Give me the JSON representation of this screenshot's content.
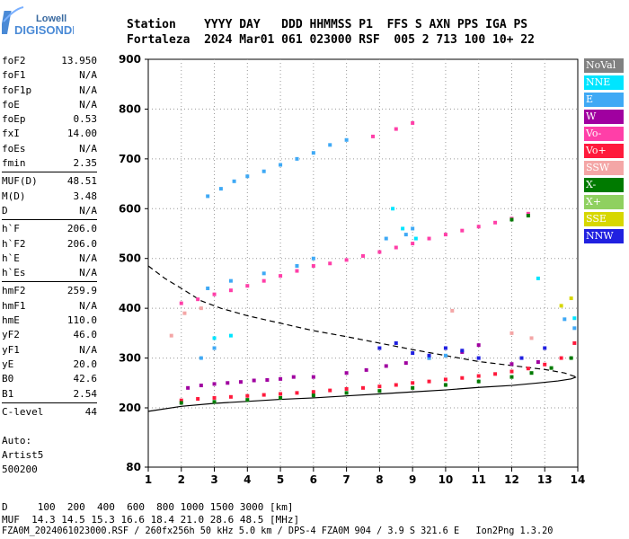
{
  "header": {
    "line1": "Station    YYYY DAY   DDD HHMMSS P1  FFS S AXN PPS IGA PS",
    "line2": "Fortaleza  2024 Mar01 061 023000 RSF  005 2 713 100 10+ 22"
  },
  "logo": {
    "line1": "Lowell",
    "line2": "DIGISONDE"
  },
  "params": [
    {
      "group": [
        {
          "label": "foF2",
          "value": "13.950"
        },
        {
          "label": "foF1",
          "value": "N/A"
        },
        {
          "label": "foF1p",
          "value": "N/A"
        },
        {
          "label": "foE",
          "value": "N/A"
        },
        {
          "label": "foEp",
          "value": "0.53"
        },
        {
          "label": "fxI",
          "value": "14.00"
        },
        {
          "label": "foEs",
          "value": "N/A"
        },
        {
          "label": "fmin",
          "value": "2.35"
        }
      ]
    },
    {
      "group": [
        {
          "label": "MUF(D)",
          "value": "48.51"
        },
        {
          "label": "M(D)",
          "value": "3.48"
        },
        {
          "label": "D",
          "value": "N/A"
        }
      ]
    },
    {
      "group": [
        {
          "label": "h`F",
          "value": "206.0"
        },
        {
          "label": "h`F2",
          "value": "206.0"
        },
        {
          "label": "h`E",
          "value": "N/A"
        },
        {
          "label": "h`Es",
          "value": "N/A"
        }
      ]
    },
    {
      "group": [
        {
          "label": "hmF2",
          "value": "259.9"
        },
        {
          "label": "hmF1",
          "value": "N/A"
        },
        {
          "label": "hmE",
          "value": "110.0"
        },
        {
          "label": "yF2",
          "value": "46.0"
        },
        {
          "label": "yF1",
          "value": "N/A"
        },
        {
          "label": "yE",
          "value": "20.0"
        },
        {
          "label": "B0",
          "value": "42.6"
        },
        {
          "label": "B1",
          "value": "2.54"
        }
      ]
    },
    {
      "group": [
        {
          "label": "C-level",
          "value": "44"
        }
      ]
    }
  ],
  "auto": {
    "line1": "Auto:",
    "line2": "Artist5",
    "line3": "500200"
  },
  "legend": [
    {
      "label": "NoVal",
      "color": "#808080"
    },
    {
      "label": "NNE",
      "color": "#00e5ff"
    },
    {
      "label": "E",
      "color": "#3fa9f5"
    },
    {
      "label": "W",
      "color": "#a000a0"
    },
    {
      "label": "Vo-",
      "color": "#ff3fa8"
    },
    {
      "label": "Vo+",
      "color": "#ff1a3c"
    },
    {
      "label": "SSW",
      "color": "#f4a6a6"
    },
    {
      "label": "X-",
      "color": "#007a00"
    },
    {
      "label": "X+",
      "color": "#8fd060"
    },
    {
      "label": "SSE",
      "color": "#d7d700"
    },
    {
      "label": "NNW",
      "color": "#2020e0"
    }
  ],
  "footer": {
    "line1": "D     100  200  400  600  800 1000 1500 3000 [km]",
    "line2": "MUF  14.3 14.5 15.3 16.6 18.4 21.0 28.6 48.5 [MHz]",
    "line3": "FZA0M_2024061023000.RSF / 260fx256h 50 kHz 5.0 km / DPS-4 FZA0M 904 / 3.9 S 321.6 E   Ion2Png 1.3.20"
  },
  "chart_data": {
    "type": "scatter",
    "title": "",
    "xlabel": "",
    "ylabel": "",
    "xlim": [
      1,
      14
    ],
    "ylim": [
      80,
      900
    ],
    "xticks": [
      1,
      2,
      3,
      4,
      5,
      6,
      7,
      8,
      9,
      10,
      11,
      12,
      13,
      14
    ],
    "yticks": [
      80,
      200,
      300,
      400,
      500,
      600,
      700,
      800,
      900
    ],
    "grid": "dotted",
    "series": [
      {
        "name": "Vo+",
        "color": "#ff1a3c",
        "points": [
          [
            2.0,
            215
          ],
          [
            2.5,
            218
          ],
          [
            3.0,
            220
          ],
          [
            3.5,
            222
          ],
          [
            4.0,
            224
          ],
          [
            4.5,
            226
          ],
          [
            5.0,
            228
          ],
          [
            5.5,
            230
          ],
          [
            6.0,
            232
          ],
          [
            6.5,
            235
          ],
          [
            7.0,
            238
          ],
          [
            7.5,
            240
          ],
          [
            8.0,
            243
          ],
          [
            8.5,
            246
          ],
          [
            9.0,
            250
          ],
          [
            9.5,
            253
          ],
          [
            10.0,
            257
          ],
          [
            10.5,
            260
          ],
          [
            11.0,
            264
          ],
          [
            11.5,
            268
          ],
          [
            12.0,
            273
          ],
          [
            12.5,
            279
          ],
          [
            13.0,
            287
          ],
          [
            13.5,
            300
          ],
          [
            13.9,
            330
          ]
        ]
      },
      {
        "name": "W",
        "color": "#a000a0",
        "points": [
          [
            2.2,
            240
          ],
          [
            2.6,
            245
          ],
          [
            3.0,
            248
          ],
          [
            3.4,
            250
          ],
          [
            3.8,
            252
          ],
          [
            4.2,
            255
          ],
          [
            4.6,
            256
          ],
          [
            5.0,
            258
          ],
          [
            5.4,
            262
          ],
          [
            6.0,
            262
          ],
          [
            7.0,
            270
          ],
          [
            7.6,
            276
          ],
          [
            8.2,
            284
          ],
          [
            8.8,
            290
          ],
          [
            9.5,
            300
          ],
          [
            10.5,
            312
          ],
          [
            11.0,
            326
          ],
          [
            12.0,
            288
          ],
          [
            12.8,
            292
          ]
        ]
      },
      {
        "name": "E",
        "color": "#3fa9f5",
        "points": [
          [
            2.8,
            625
          ],
          [
            3.2,
            640
          ],
          [
            3.6,
            655
          ],
          [
            4.0,
            665
          ],
          [
            4.5,
            675
          ],
          [
            5.0,
            688
          ],
          [
            5.5,
            700
          ],
          [
            6.0,
            712
          ],
          [
            6.5,
            728
          ],
          [
            7.0,
            738
          ],
          [
            2.8,
            440
          ],
          [
            3.5,
            455
          ],
          [
            4.5,
            470
          ],
          [
            5.5,
            485
          ],
          [
            6.0,
            500
          ],
          [
            8.2,
            540
          ],
          [
            8.8,
            548
          ],
          [
            9.0,
            560
          ],
          [
            2.6,
            300
          ],
          [
            3.0,
            320
          ],
          [
            9.5,
            300
          ],
          [
            10.0,
            305
          ],
          [
            13.6,
            378
          ],
          [
            13.9,
            360
          ]
        ]
      },
      {
        "name": "Vo-",
        "color": "#ff3fa8",
        "points": [
          [
            2.0,
            410
          ],
          [
            2.5,
            418
          ],
          [
            3.0,
            428
          ],
          [
            3.5,
            436
          ],
          [
            4.0,
            445
          ],
          [
            4.5,
            455
          ],
          [
            5.0,
            465
          ],
          [
            5.5,
            475
          ],
          [
            6.0,
            485
          ],
          [
            6.5,
            490
          ],
          [
            7.0,
            497
          ],
          [
            7.5,
            505
          ],
          [
            8.0,
            513
          ],
          [
            8.5,
            522
          ],
          [
            9.0,
            530
          ],
          [
            9.5,
            540
          ],
          [
            10.0,
            548
          ],
          [
            10.5,
            556
          ],
          [
            11.0,
            564
          ],
          [
            11.5,
            572
          ],
          [
            12.0,
            580
          ],
          [
            12.5,
            590
          ],
          [
            7.8,
            745
          ],
          [
            8.5,
            760
          ],
          [
            9.0,
            772
          ]
        ]
      },
      {
        "name": "X-",
        "color": "#007a00",
        "points": [
          [
            2.0,
            210
          ],
          [
            3.0,
            212
          ],
          [
            4.0,
            216
          ],
          [
            5.0,
            220
          ],
          [
            6.0,
            225
          ],
          [
            7.0,
            230
          ],
          [
            8.0,
            234
          ],
          [
            9.0,
            240
          ],
          [
            10.0,
            246
          ],
          [
            11.0,
            253
          ],
          [
            12.0,
            262
          ],
          [
            12.6,
            270
          ],
          [
            13.2,
            280
          ],
          [
            13.8,
            300
          ],
          [
            12.0,
            578
          ],
          [
            12.5,
            586
          ]
        ]
      },
      {
        "name": "NNW",
        "color": "#2020e0",
        "points": [
          [
            8.0,
            320
          ],
          [
            8.5,
            330
          ],
          [
            9.0,
            310
          ],
          [
            9.5,
            305
          ],
          [
            10.0,
            320
          ],
          [
            10.5,
            315
          ],
          [
            11.0,
            300
          ],
          [
            12.3,
            300
          ],
          [
            13.0,
            320
          ]
        ]
      },
      {
        "name": "NNE",
        "color": "#00e5ff",
        "points": [
          [
            3.0,
            340
          ],
          [
            3.5,
            345
          ],
          [
            8.4,
            600
          ],
          [
            8.7,
            560
          ],
          [
            9.1,
            540
          ],
          [
            12.8,
            460
          ],
          [
            13.9,
            380
          ]
        ]
      },
      {
        "name": "SSW",
        "color": "#f4a6a6",
        "points": [
          [
            1.7,
            345
          ],
          [
            2.1,
            390
          ],
          [
            2.6,
            400
          ],
          [
            10.2,
            395
          ],
          [
            12.0,
            350
          ],
          [
            12.6,
            340
          ]
        ]
      },
      {
        "name": "SSE",
        "color": "#d7d700",
        "points": [
          [
            13.8,
            420
          ],
          [
            13.5,
            405
          ]
        ]
      }
    ],
    "curves": [
      {
        "name": "profile",
        "style": "solid",
        "points": [
          [
            1,
            193
          ],
          [
            2,
            203
          ],
          [
            3,
            209
          ],
          [
            4,
            213
          ],
          [
            5,
            217
          ],
          [
            6,
            220
          ],
          [
            7,
            224
          ],
          [
            8,
            228
          ],
          [
            9,
            232
          ],
          [
            10,
            236
          ],
          [
            11,
            241
          ],
          [
            12,
            245
          ],
          [
            12.8,
            250
          ],
          [
            13.4,
            254
          ],
          [
            13.8,
            258
          ],
          [
            13.95,
            262
          ]
        ]
      },
      {
        "name": "muf",
        "style": "dashed",
        "points": [
          [
            1,
            485
          ],
          [
            1.5,
            460
          ],
          [
            2,
            440
          ],
          [
            2.6,
            415
          ],
          [
            3.2,
            400
          ],
          [
            4,
            385
          ],
          [
            5,
            370
          ],
          [
            6,
            355
          ],
          [
            7,
            343
          ],
          [
            8,
            330
          ],
          [
            9,
            317
          ],
          [
            10,
            305
          ],
          [
            11,
            293
          ],
          [
            12,
            285
          ],
          [
            13,
            277
          ],
          [
            13.6,
            270
          ],
          [
            13.95,
            262
          ]
        ]
      }
    ]
  }
}
